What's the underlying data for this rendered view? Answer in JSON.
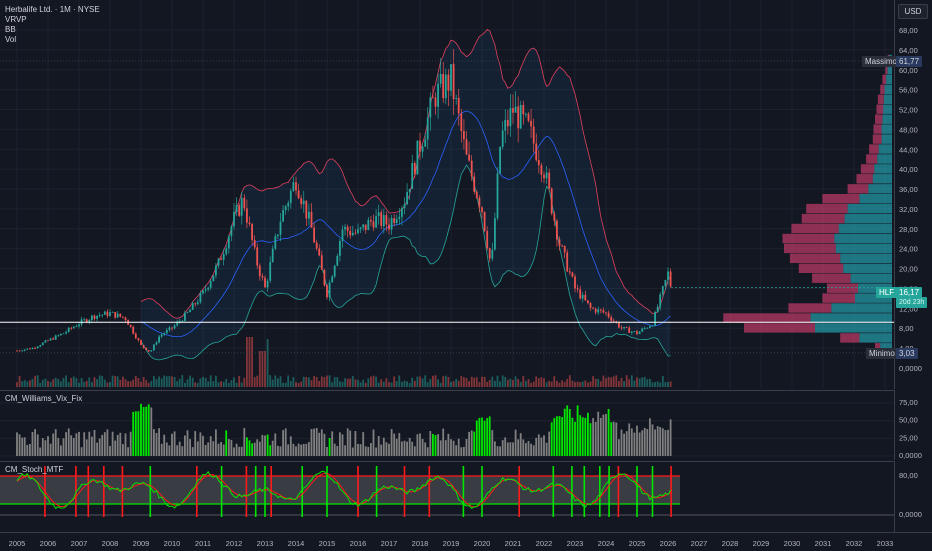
{
  "header": {
    "symbol": "Herbalife Ltd. · 1M · NYSE",
    "indicators": [
      "VRVP",
      "BB",
      "Vol"
    ]
  },
  "currency": "USD",
  "price_axis": {
    "labels": [
      "68,00",
      "64,00",
      "60,00",
      "56,00",
      "52,00",
      "48,00",
      "44,00",
      "40,00",
      "36,00",
      "32,00",
      "28,00",
      "24,00",
      "20,00",
      "16,00",
      "12,00",
      "8,00",
      "4,00",
      "0,0000"
    ]
  },
  "tags": {
    "max_label": "Massimo",
    "max_value": "61,77",
    "ticker": "HLF",
    "price": "16,17",
    "countdown": "20d 23h",
    "min_label": "Minimo",
    "min_value": "3,03"
  },
  "wvf": {
    "title": "CM_Williams_Vix_Fix",
    "axis_labels": [
      "75,00",
      "50,00",
      "25,00",
      "0,0000"
    ]
  },
  "stoch": {
    "title": "CM_Stoch_MTF",
    "axis_labels": [
      "80,00",
      "0,0000"
    ]
  },
  "time_axis": {
    "labels": [
      "2005",
      "2006",
      "2007",
      "2008",
      "2009",
      "2010",
      "2011",
      "2012",
      "2013",
      "2014",
      "2015",
      "2016",
      "2017",
      "2018",
      "2019",
      "2020",
      "2021",
      "2022",
      "2023",
      "2024",
      "2025",
      "2026",
      "2027",
      "2028",
      "2029",
      "2030",
      "2031",
      "2032",
      "2033"
    ]
  },
  "colors": {
    "background": "#131722",
    "up": "#26a69a",
    "down": "#ef5350",
    "bb_upper": "#e0405e",
    "bb_basis": "#2962ff",
    "bb_lower": "#26a69a",
    "vp_up": "#26a9b8",
    "vp_down": "#d03e6e",
    "wvf_normal": "#808080",
    "wvf_spike": "#00e600",
    "stoch_k": "#00e600",
    "stoch_d": "#ff1a1a"
  },
  "chart_data": {
    "type": "candlestick",
    "interval": "1M",
    "series_price": [
      [
        "2005.0",
        3.5
      ],
      [
        "2005.5",
        4.0
      ],
      [
        "2006.0",
        5.5
      ],
      [
        "2006.5",
        7.0
      ],
      [
        "2007.0",
        9.0
      ],
      [
        "2007.5",
        10.5
      ],
      [
        "2008.0",
        11.0
      ],
      [
        "2008.5",
        10.0
      ],
      [
        "2009.0",
        4.5
      ],
      [
        "2009.3",
        3.2
      ],
      [
        "2009.6",
        6.5
      ],
      [
        "2010.0",
        8.0
      ],
      [
        "2010.5",
        11.0
      ],
      [
        "2011.0",
        15.0
      ],
      [
        "2011.5",
        21.0
      ],
      [
        "2012.0",
        30.0
      ],
      [
        "2012.3",
        34.0
      ],
      [
        "2012.7",
        22.0
      ],
      [
        "2013.0",
        16.0
      ],
      [
        "2013.5",
        30.0
      ],
      [
        "2014.0",
        38.0
      ],
      [
        "2014.5",
        28.0
      ],
      [
        "2015.0",
        15.0
      ],
      [
        "2015.5",
        28.0
      ],
      [
        "2016.0",
        27.0
      ],
      [
        "2016.5",
        30.0
      ],
      [
        "2017.0",
        29.0
      ],
      [
        "2017.5",
        34.0
      ],
      [
        "2018.0",
        45.0
      ],
      [
        "2018.5",
        55.0
      ],
      [
        "2019.0",
        58.0
      ],
      [
        "2019.5",
        42.0
      ],
      [
        "2020.0",
        32.0
      ],
      [
        "2020.3",
        20.0
      ],
      [
        "2020.6",
        46.0
      ],
      [
        "2021.0",
        52.0
      ],
      [
        "2021.5",
        48.0
      ],
      [
        "2022.0",
        40.0
      ],
      [
        "2022.5",
        25.0
      ],
      [
        "2023.0",
        16.0
      ],
      [
        "2023.5",
        12.0
      ],
      [
        "2024.0",
        11.0
      ],
      [
        "2024.5",
        8.0
      ],
      [
        "2025.0",
        7.0
      ],
      [
        "2025.5",
        9.0
      ],
      [
        "2026.0",
        19.0
      ],
      [
        "2026.1",
        16.17
      ]
    ],
    "current_price": 16.17,
    "all_time_high": 61.77,
    "all_time_low": 3.03
  }
}
